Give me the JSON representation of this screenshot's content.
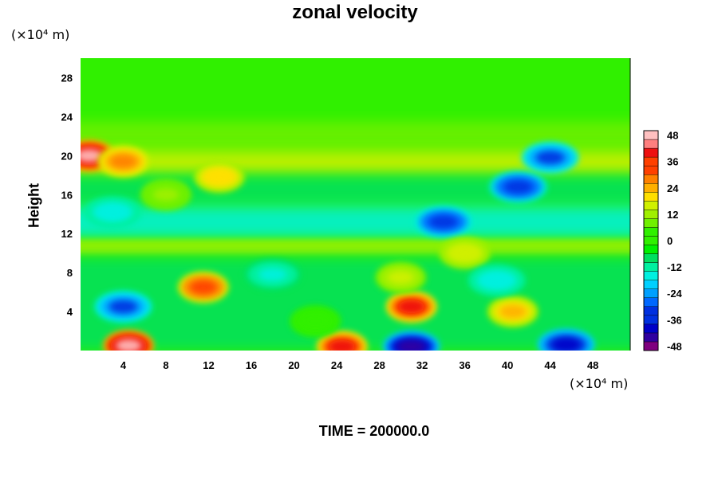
{
  "chart_data": {
    "type": "heatmap",
    "title": "zonal velocity",
    "ylabel": "Height",
    "xunit": "(×10⁴ m)",
    "yunit": "(×10⁴ m)",
    "xlim": [
      0,
      51.5
    ],
    "ylim": [
      0,
      30
    ],
    "xticks": [
      "4",
      "8",
      "12",
      "16",
      "20",
      "24",
      "28",
      "32",
      "36",
      "40",
      "44",
      "48"
    ],
    "yticks": [
      "4",
      "8",
      "12",
      "16",
      "20",
      "24",
      "28"
    ],
    "colorbar": {
      "range": [
        -50,
        50
      ],
      "step": 4,
      "ticks": [
        "48",
        "36",
        "24",
        "12",
        "0",
        "-12",
        "-24",
        "-36",
        "-48"
      ],
      "colors": [
        "#7f007f",
        "#3000a0",
        "#0000c8",
        "#0030e0",
        "#0068ff",
        "#00a0ff",
        "#00d0ff",
        "#00f0e0",
        "#00f0a0",
        "#00e060",
        "#00f000",
        "#30f000",
        "#70f000",
        "#a0f000",
        "#d0f000",
        "#ffe000",
        "#ffb000",
        "#ff8000",
        "#ff4000",
        "#ee1010",
        "#ff7f7f",
        "#ffc0c0"
      ]
    },
    "features": [
      {
        "x": 0.8,
        "y": 20.0,
        "value": 48
      },
      {
        "x": 4.0,
        "y": 19.4,
        "value": 28
      },
      {
        "x": 13.0,
        "y": 17.8,
        "value": 22
      },
      {
        "x": 8.0,
        "y": 16.0,
        "value": 10
      },
      {
        "x": 3.0,
        "y": 14.2,
        "value": -18
      },
      {
        "x": 34.0,
        "y": 13.2,
        "value": -34
      },
      {
        "x": 41.0,
        "y": 16.8,
        "value": -34
      },
      {
        "x": 44.0,
        "y": 19.8,
        "value": -32
      },
      {
        "x": 36.0,
        "y": 10.0,
        "value": 18
      },
      {
        "x": 4.0,
        "y": 4.5,
        "value": -32
      },
      {
        "x": 11.5,
        "y": 6.5,
        "value": 34
      },
      {
        "x": 31.0,
        "y": 4.5,
        "value": 40
      },
      {
        "x": 40.5,
        "y": 4.0,
        "value": 26
      },
      {
        "x": 4.5,
        "y": 0.5,
        "value": 48
      },
      {
        "x": 24.5,
        "y": 0.4,
        "value": 38
      },
      {
        "x": 31.0,
        "y": 0.4,
        "value": -44
      },
      {
        "x": 45.5,
        "y": 0.6,
        "value": -38
      },
      {
        "x": 39.0,
        "y": 7.2,
        "value": -18
      },
      {
        "x": 18.0,
        "y": 7.8,
        "value": -14
      },
      {
        "x": 22.0,
        "y": 3.0,
        "value": 4
      },
      {
        "x": 30.0,
        "y": 7.5,
        "value": 14
      }
    ],
    "grid": false,
    "legend": "colorbar-right"
  },
  "footer": "TIME = 200000.0"
}
